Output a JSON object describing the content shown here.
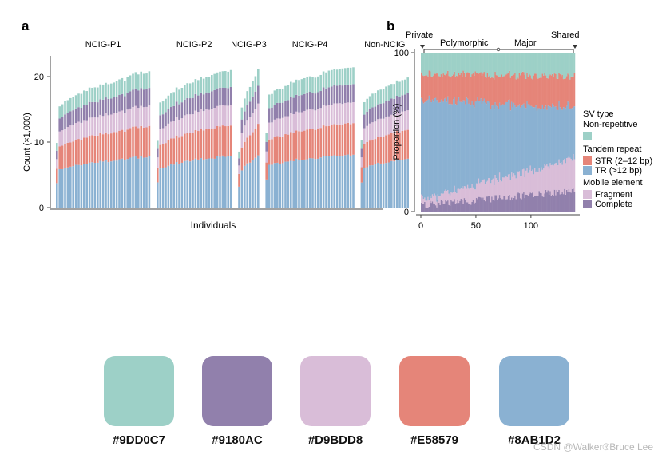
{
  "chart_data": [
    {
      "panel": "a",
      "type": "bar",
      "stacked": true,
      "xlabel": "Individuals",
      "ylabel": "Count (×1,000)",
      "ylim": [
        0,
        23
      ],
      "yticks": [
        "0",
        "10",
        "20"
      ],
      "groups": [
        {
          "name": "NCIG-P1",
          "n": 35,
          "total_start": 14.6,
          "total_end": 20.8
        },
        {
          "name": "NCIG-P2",
          "n": 28,
          "total_start": 15.0,
          "total_end": 21.3
        },
        {
          "name": "NCIG-P3",
          "n": 8,
          "total_start": 12.5,
          "total_end": 20.8
        },
        {
          "name": "NCIG-P4",
          "n": 33,
          "total_start": 16.5,
          "total_end": 21.6
        },
        {
          "name": "Non-NCIG",
          "n": 18,
          "total_start": 15.2,
          "total_end": 19.8
        }
      ],
      "series": [
        {
          "name": "TR (>12 bp)",
          "share": 0.375,
          "color": "#8AB1D2"
        },
        {
          "name": "STR (2–12 bp)",
          "share": 0.225,
          "color": "#E58579"
        },
        {
          "name": "Fragment",
          "share": 0.15,
          "color": "#D9BDD8"
        },
        {
          "name": "Complete",
          "share": 0.13,
          "color": "#9180AC"
        },
        {
          "name": "Non-repetitive",
          "share": 0.12,
          "color": "#9DD0C7"
        }
      ]
    },
    {
      "panel": "b",
      "type": "bar",
      "stacked": true,
      "normalized": true,
      "xlabel": "",
      "ylabel": "Proportion (%)",
      "xlim": [
        0,
        140
      ],
      "xticks": [
        "0",
        "50",
        "100"
      ],
      "ylim": [
        0,
        100
      ],
      "yticks": [
        "0",
        "100"
      ],
      "n_bars": 140,
      "top_labels": {
        "private": "Private",
        "polymorphic": "Polymorphic",
        "major": "Major",
        "shared": "Shared"
      },
      "legend": {
        "title": "SV type",
        "categories": [
          {
            "heading": "Non-repetitive",
            "items": [
              {
                "label": "",
                "color": "#9DD0C7"
              }
            ]
          },
          {
            "heading": "Tandem repeat",
            "items": [
              {
                "label": "STR (2–12 bp)",
                "color": "#E58579"
              },
              {
                "label": "TR (>12 bp)",
                "color": "#8AB1D2"
              }
            ]
          },
          {
            "heading": "Mobile element",
            "items": [
              {
                "label": "Fragment",
                "color": "#D9BDD8"
              },
              {
                "label": "Complete",
                "color": "#9180AC"
              }
            ]
          }
        ]
      },
      "series": [
        {
          "name": "Complete",
          "start": 4,
          "end": 13,
          "color": "#9180AC"
        },
        {
          "name": "Fragment",
          "start": 4,
          "end": 20,
          "color": "#D9BDD8"
        },
        {
          "name": "TR (>12 bp)",
          "start": 63,
          "end": 32,
          "color": "#8AB1D2"
        },
        {
          "name": "STR (2–12 bp)",
          "start": 16,
          "end": 20,
          "color": "#E58579"
        },
        {
          "name": "Non-repetitive",
          "start": 13,
          "end": 15,
          "color": "#9DD0C7"
        }
      ]
    }
  ],
  "labels": {
    "panel_a": "a",
    "panel_b": "b"
  },
  "palette": [
    {
      "hex": "#9DD0C7",
      "label": "#9DD0C7"
    },
    {
      "hex": "#9180AC",
      "label": "#9180AC"
    },
    {
      "hex": "#D9BDD8",
      "label": "#D9BDD8"
    },
    {
      "hex": "#E58579",
      "label": "#E58579"
    },
    {
      "hex": "#8AB1D2",
      "label": "#8AB1D2"
    }
  ],
  "watermark": "CSDN @Walker®Bruce Lee"
}
